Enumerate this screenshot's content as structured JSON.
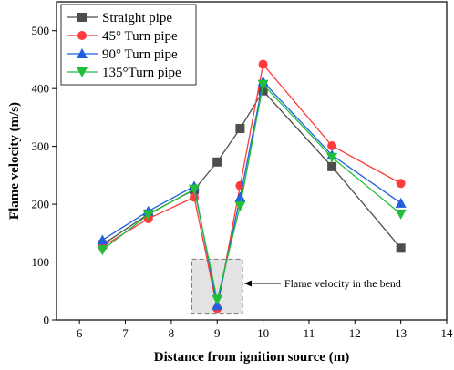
{
  "chart_data": {
    "type": "line",
    "xlabel": "Distance from ignition source (m)",
    "ylabel": "Flame velocity (m/s)",
    "xlim": [
      5.5,
      14
    ],
    "ylim": [
      0,
      550
    ],
    "xticks": [
      6,
      7,
      8,
      9,
      10,
      11,
      12,
      13,
      14
    ],
    "yticks": [
      0,
      100,
      200,
      300,
      400,
      500
    ],
    "legend_position": "top-left",
    "series": [
      {
        "name": "Straight pipe",
        "color": "#4d4d4d",
        "marker": "square",
        "x": [
          6.5,
          7.5,
          8.5,
          9,
          9.5,
          10,
          11.5,
          13
        ],
        "y": [
          130,
          183,
          225,
          273,
          331,
          396,
          265,
          124
        ]
      },
      {
        "name": "45° Turn pipe",
        "color": "#ff3b3b",
        "marker": "circle",
        "x": [
          6.5,
          7.5,
          8.5,
          9,
          9.5,
          10,
          11.5,
          13
        ],
        "y": [
          127,
          175,
          212,
          20,
          232,
          442,
          301,
          236
        ]
      },
      {
        "name": "90° Turn pipe",
        "color": "#1f5fe0",
        "marker": "triangle-up",
        "x": [
          6.5,
          7.5,
          8.5,
          9,
          9.5,
          10,
          11.5,
          13
        ],
        "y": [
          138,
          188,
          231,
          25,
          212,
          412,
          285,
          202
        ]
      },
      {
        "name": "135°Turn pipe",
        "color": "#1fbf3a",
        "marker": "triangle-down",
        "x": [
          6.5,
          7.5,
          8.5,
          9,
          9.5,
          10,
          11.5,
          13
        ],
        "y": [
          121,
          182,
          226,
          35,
          197,
          407,
          281,
          183
        ]
      }
    ],
    "annotation": {
      "text": "Flame velocity in the bend",
      "box_x": [
        8.45,
        9.55
      ],
      "box_y": [
        10,
        105
      ],
      "arrow_tip_y": 63
    }
  }
}
